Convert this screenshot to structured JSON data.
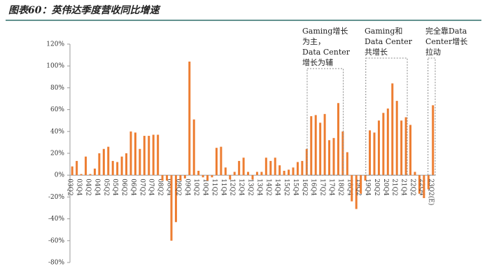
{
  "chart_data": {
    "type": "bar",
    "title": "图表60：英伟达季度营收同比增速",
    "categories": [
      "03Q2",
      null,
      "03Q4",
      null,
      "04Q2",
      null,
      "04Q4",
      null,
      "05Q2",
      null,
      "05Q4",
      null,
      "06Q2",
      null,
      "06Q4",
      null,
      "07Q2",
      null,
      "07Q4",
      null,
      "08Q2",
      null,
      "08Q4",
      null,
      "09Q2",
      null,
      "09Q4",
      null,
      "10Q2",
      null,
      "10Q4",
      null,
      "11Q2",
      null,
      "11Q4",
      null,
      "12Q2",
      null,
      "12Q4",
      null,
      "13Q2",
      null,
      "13Q4",
      null,
      "14Q2",
      null,
      "14Q4",
      null,
      "15Q2",
      null,
      "15Q4",
      null,
      "16Q2",
      null,
      "16Q4",
      null,
      "17Q2",
      null,
      "17Q4",
      null,
      "18Q2",
      null,
      "18Q4",
      null,
      "19Q2",
      null,
      "19Q4",
      null,
      "20Q2",
      null,
      "20Q4",
      null,
      "21Q2",
      null,
      "21Q4",
      null,
      "22Q2",
      null,
      "22Q4",
      null,
      "23Q2(E)"
    ],
    "values": [
      8,
      13,
      1,
      17,
      1,
      6,
      20,
      24,
      26,
      13,
      12,
      17,
      20,
      40,
      39,
      24,
      36,
      36,
      37,
      37,
      -5,
      -5,
      -60,
      -43,
      -5,
      -3,
      104,
      51,
      4,
      -2,
      -5,
      -2,
      25,
      26,
      7,
      -4,
      3,
      13,
      16,
      3,
      -4,
      3,
      3,
      16,
      13,
      16,
      9,
      4,
      5,
      7,
      12,
      13,
      24,
      54,
      55,
      48,
      56,
      32,
      34,
      66,
      40,
      21,
      -24,
      -31,
      -17,
      -5,
      41,
      39,
      50,
      57,
      61,
      84,
      68,
      50,
      53,
      46,
      3,
      -17,
      -21,
      -13,
      64
    ],
    "color": "#ed7d31",
    "ylim": [
      -80,
      120
    ],
    "yticks": [
      {
        "value": -80,
        "label": "-80%"
      },
      {
        "value": -60,
        "label": "-60%"
      },
      {
        "value": -40,
        "label": "-40%"
      },
      {
        "value": -20,
        "label": "-20%"
      },
      {
        "value": 0,
        "label": "0%"
      },
      {
        "value": 20,
        "label": "20%"
      },
      {
        "value": 40,
        "label": "40%"
      },
      {
        "value": 60,
        "label": "60%"
      },
      {
        "value": 80,
        "label": "80%"
      },
      {
        "value": 100,
        "label": "100%"
      },
      {
        "value": 120,
        "label": "120%"
      }
    ],
    "annotations": [
      {
        "lines": [
          "Gaming增长",
          "为主，",
          "Data Center",
          "增长为辅"
        ]
      },
      {
        "lines": [
          "Gaming和",
          "Data Center",
          "共增长"
        ]
      },
      {
        "lines": [
          "完全靠Data",
          "Center增长",
          "拉动"
        ]
      }
    ]
  }
}
